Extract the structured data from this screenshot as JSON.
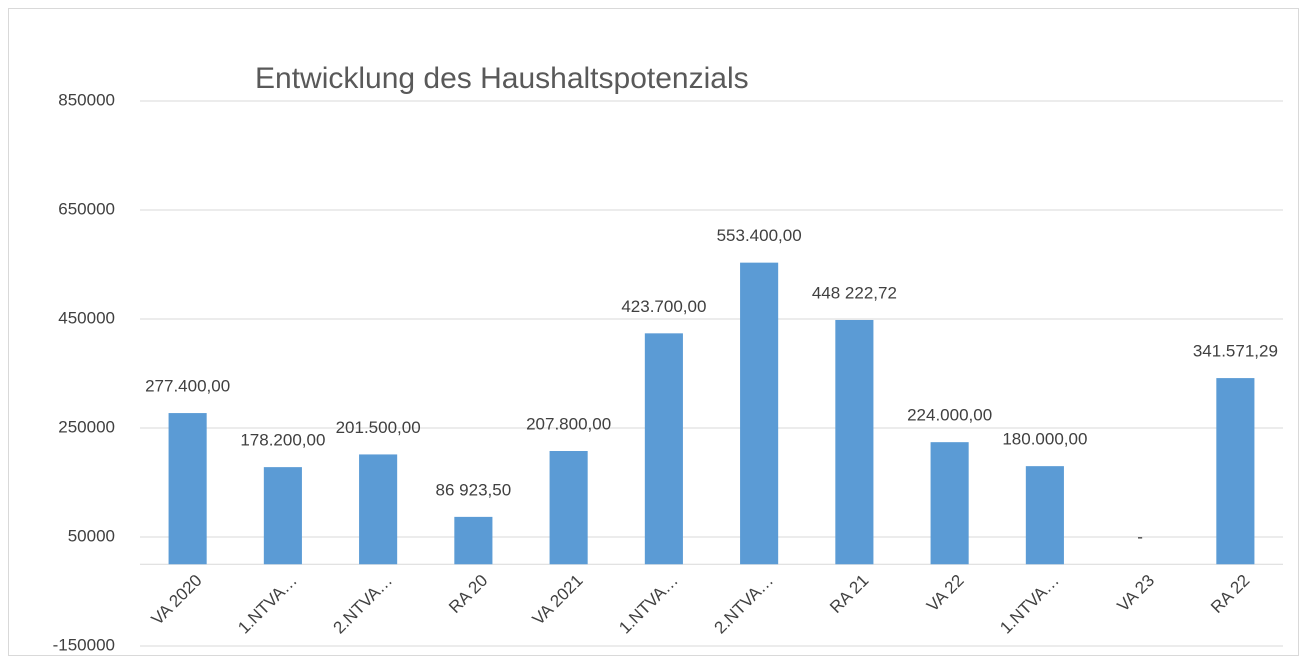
{
  "chart_data": {
    "type": "bar",
    "title": "Entwicklung des Haushaltspotenzials",
    "categories": [
      "VA 2020",
      "1.NTVA…",
      "2.NTVA…",
      "RA 20",
      "VA 2021",
      "1.NTVA…",
      "2.NTVA…",
      "RA 21",
      "VA 22",
      "1.NTVA…",
      "VA 23",
      "RA 22"
    ],
    "values": [
      277400,
      178200,
      201500,
      86923.5,
      207800,
      423700,
      553400,
      448222.72,
      224000,
      180000,
      0,
      341571.29
    ],
    "value_labels": [
      "277.400,00",
      "178.200,00",
      "201.500,00",
      "86 923,50",
      "207.800,00",
      "423.700,00",
      "553.400,00",
      "448 222,72",
      "224.000,00",
      "180.000,00",
      "-",
      "341.571,29"
    ],
    "color": "#5b9bd5",
    "ylim": [
      -150000,
      850000
    ],
    "yticks": [
      -150000,
      50000,
      250000,
      450000,
      650000,
      850000
    ],
    "grid": true
  }
}
